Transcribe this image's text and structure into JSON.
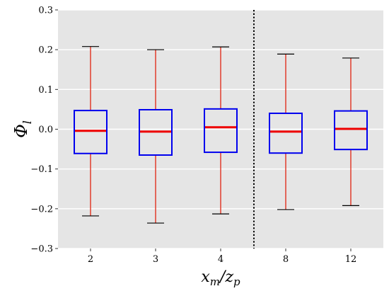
{
  "chart_data": {
    "type": "box",
    "title": "",
    "xlabel": "x_m/z_p",
    "ylabel": "Φ_l",
    "categories": [
      "2",
      "3",
      "4",
      "8",
      "12"
    ],
    "ylim": [
      -0.3,
      0.3
    ],
    "yticks": [
      -0.3,
      -0.2,
      -0.1,
      0.0,
      0.1,
      0.2,
      0.3
    ],
    "ytick_labels": [
      "−0.3",
      "−0.2",
      "−0.1",
      "0.0",
      "0.1",
      "0.2",
      "0.3"
    ],
    "grid": true,
    "boxes": [
      {
        "category": "2",
        "whisker_low": -0.218,
        "q1": -0.061,
        "median": -0.004,
        "q3": 0.047,
        "whisker_high": 0.208
      },
      {
        "category": "3",
        "whisker_low": -0.236,
        "q1": -0.065,
        "median": -0.006,
        "q3": 0.049,
        "whisker_high": 0.2
      },
      {
        "category": "4",
        "whisker_low": -0.213,
        "q1": -0.058,
        "median": 0.005,
        "q3": 0.051,
        "whisker_high": 0.207
      },
      {
        "category": "8",
        "whisker_low": -0.202,
        "q1": -0.06,
        "median": -0.006,
        "q3": 0.04,
        "whisker_high": 0.189
      },
      {
        "category": "12",
        "whisker_low": -0.192,
        "q1": -0.051,
        "median": 0.001,
        "q3": 0.046,
        "whisker_high": 0.179
      }
    ],
    "divider_after_category": "4",
    "colors": {
      "panel": "#e5e5e5",
      "grid": "#ffffff",
      "box": "#0000ee",
      "median": "#ee0000",
      "whisker": "#e0301e",
      "cap": "#000000",
      "divider": "#000000"
    }
  }
}
